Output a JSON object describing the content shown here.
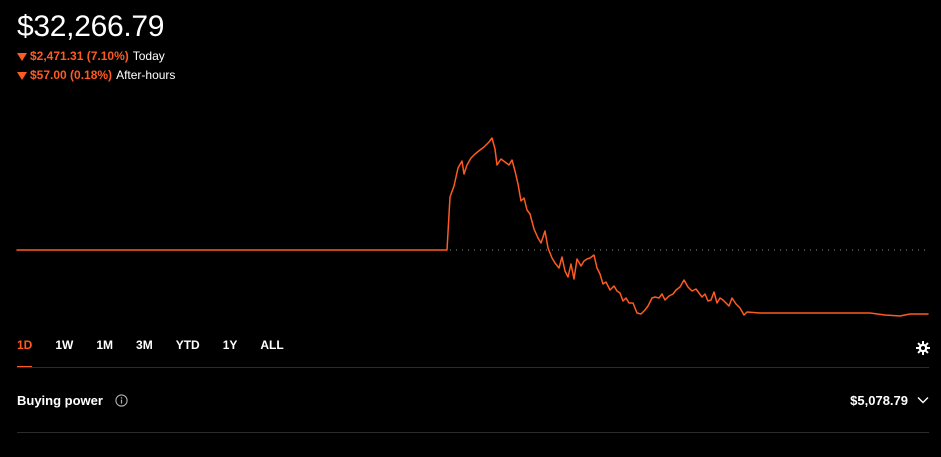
{
  "portfolio": {
    "value": "$32,266.79",
    "today": {
      "change": "$2,471.31 (7.10%)",
      "label": "Today"
    },
    "after_hours": {
      "change": "$57.00 (0.18%)",
      "label": "After-hours"
    }
  },
  "colors": {
    "accent": "#ff5a21",
    "background": "#000000",
    "text": "#ffffff",
    "divider": "#2a2d2f"
  },
  "ranges": [
    {
      "label": "1D",
      "active": true
    },
    {
      "label": "1W",
      "active": false
    },
    {
      "label": "1M",
      "active": false
    },
    {
      "label": "3M",
      "active": false
    },
    {
      "label": "YTD",
      "active": false
    },
    {
      "label": "1Y",
      "active": false
    },
    {
      "label": "ALL",
      "active": false
    }
  ],
  "buying_power": {
    "label": "Buying power",
    "value": "$5,078.79"
  },
  "icons": {
    "settings": "gear-icon",
    "info": "info-icon",
    "expand": "chevron-down-icon",
    "down": "arrow-down-icon"
  }
}
